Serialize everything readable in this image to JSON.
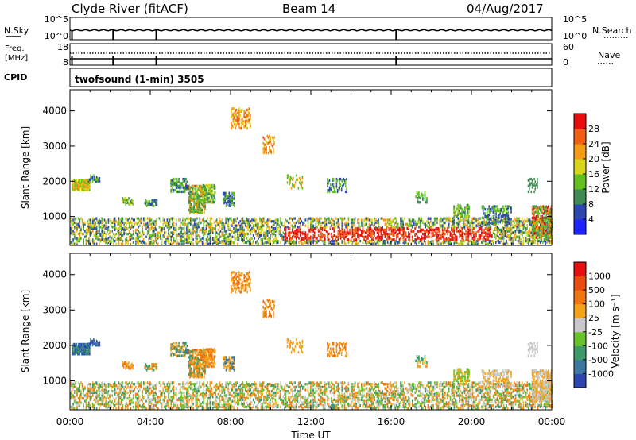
{
  "header": {
    "radar_label": "Clyde River (fitACF)",
    "beam_label": "Beam 14",
    "date_label": "04/Aug/2017"
  },
  "chart_data": [
    {
      "type": "line",
      "panel": "noise",
      "left_label": "N.Sky",
      "right_label": "N.Search",
      "left_ticks": [
        "10^5",
        "10^0"
      ],
      "right_ticks": [
        "10^5",
        "10^0"
      ],
      "series": [
        {
          "name": "N.Sky",
          "style": "solid"
        },
        {
          "name": "N.Search",
          "style": "dotted"
        }
      ]
    },
    {
      "type": "line",
      "panel": "frequency",
      "left_label_lines": [
        "Freq.",
        "[MHz]"
      ],
      "right_label": "Nave",
      "left_ticks": [
        18,
        8
      ],
      "right_ticks": [
        60,
        0
      ],
      "series": [
        {
          "name": "Freq.",
          "style": "solid"
        },
        {
          "name": "Nave",
          "style": "dotted"
        }
      ]
    },
    {
      "type": "table",
      "panel": "cpid",
      "left_label": "CPID",
      "program_label": "twofsound (1-min) 3505"
    },
    {
      "type": "heatmap",
      "panel": "power",
      "ylabel": "Slant Range [km]",
      "yticks": [
        1000,
        2000,
        3000,
        4000
      ],
      "ylim": [
        180,
        4600
      ],
      "xlim_hours": [
        0,
        24
      ],
      "colorbar_label": "Power [dB]",
      "colorbar_ticks": [
        "4",
        "8",
        "12",
        "16",
        "20",
        "24",
        "28"
      ],
      "colors": [
        "#1e24ff",
        "#2c47b0",
        "#3f8a55",
        "#62c01f",
        "#d9d41c",
        "#f49a17",
        "#f05f12",
        "#e80e0e"
      ]
    },
    {
      "type": "heatmap",
      "panel": "velocity",
      "ylabel": "Slant Range [km]",
      "yticks": [
        1000,
        2000,
        3000,
        4000
      ],
      "ylim": [
        180,
        4600
      ],
      "xlim_hours": [
        0,
        24
      ],
      "xtick_labels": [
        "00:00",
        "04:00",
        "08:00",
        "12:00",
        "16:00",
        "20:00",
        "00:00"
      ],
      "xlabel": "Time UT",
      "colorbar_label": "Velocity [m s⁻¹]",
      "colorbar_ticks": [
        "1000",
        "500",
        "100",
        "25",
        "-25",
        "-100",
        "-500",
        "-1000"
      ],
      "colors": [
        "#2c48b0",
        "#3a78a0",
        "#3d9a68",
        "#68c22a",
        "#c8c8c8",
        "#f3a31a",
        "#ef7510",
        "#ea4b0e",
        "#e51010"
      ]
    }
  ]
}
